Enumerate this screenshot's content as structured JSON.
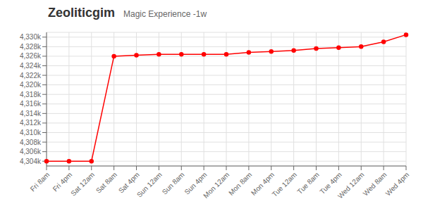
{
  "chart_data": {
    "type": "line",
    "title": "Zeoliticgim",
    "subtitle": "Magic Experience -1w",
    "categories": [
      "Fri 8am",
      "Fri 4pm",
      "Sat 12am",
      "Sat 8am",
      "Sat 4pm",
      "Sun 12am",
      "Sun 8am",
      "Sun 4pm",
      "Mon 12am",
      "Mon 8am",
      "Mon 4pm",
      "Tue 12am",
      "Tue 8am",
      "Tue 4pm",
      "Wed 12am",
      "Wed 8am",
      "Wed 4pm"
    ],
    "values": [
      4304000,
      4304000,
      4304000,
      4326000,
      4326200,
      4326400,
      4326400,
      4326400,
      4326400,
      4326800,
      4327000,
      4327200,
      4327600,
      4327800,
      4328000,
      4329000,
      4330500
    ],
    "color": "#ff0000",
    "marker": "circle",
    "ylim": [
      4303000,
      4331000
    ],
    "yticks": [
      {
        "value": 4304000,
        "label": "4,304k"
      },
      {
        "value": 4306000,
        "label": "4,306k"
      },
      {
        "value": 4308000,
        "label": "4,308k"
      },
      {
        "value": 4310000,
        "label": "4,310k"
      },
      {
        "value": 4312000,
        "label": "4,312k"
      },
      {
        "value": 4314000,
        "label": "4,314k"
      },
      {
        "value": 4316000,
        "label": "4,316k"
      },
      {
        "value": 4318000,
        "label": "4,318k"
      },
      {
        "value": 4320000,
        "label": "4,320k"
      },
      {
        "value": 4322000,
        "label": "4,322k"
      },
      {
        "value": 4324000,
        "label": "4,324k"
      },
      {
        "value": 4326000,
        "label": "4,326k"
      },
      {
        "value": 4328000,
        "label": "4,328k"
      },
      {
        "value": 4330000,
        "label": "4,330k"
      }
    ],
    "grid": true
  }
}
